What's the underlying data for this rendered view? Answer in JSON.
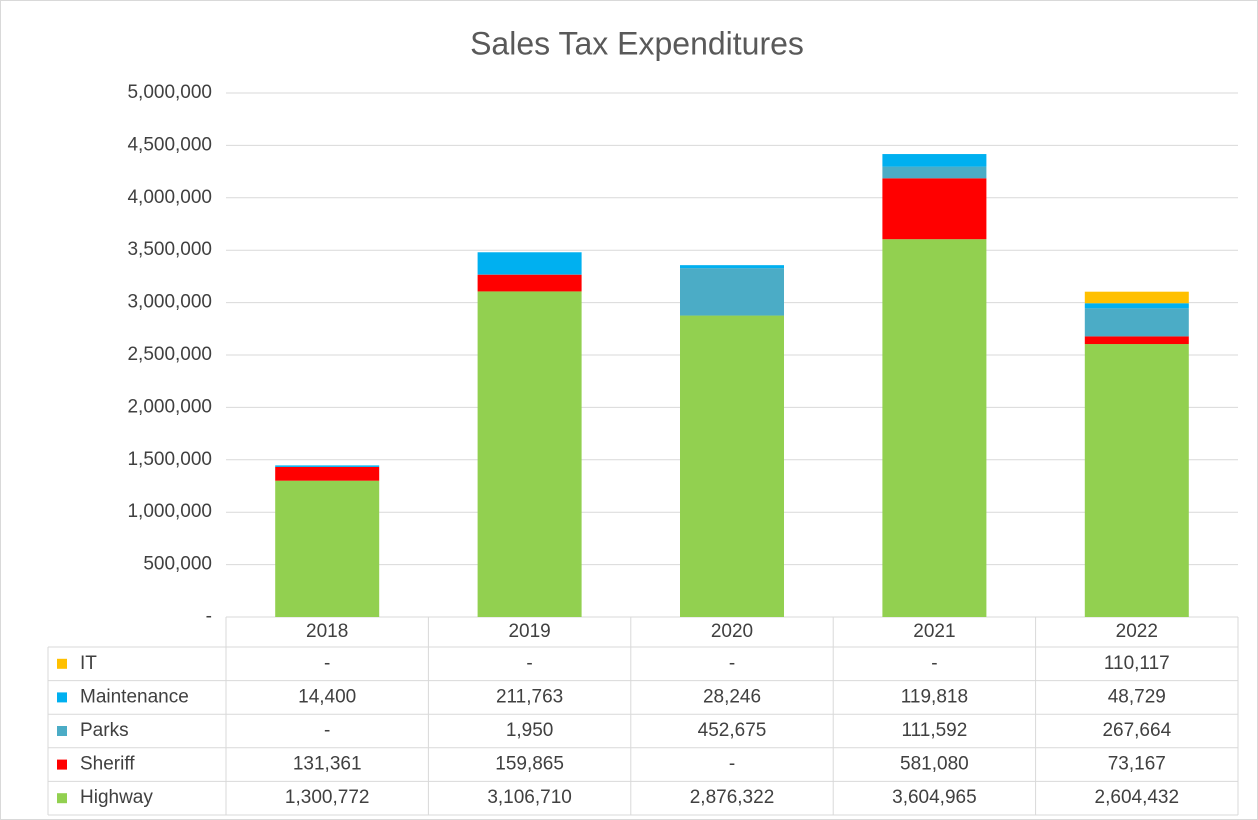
{
  "chart_data": {
    "type": "stacked_bar",
    "title": "Sales Tax Expenditures",
    "categories": [
      "2018",
      "2019",
      "2020",
      "2021",
      "2022"
    ],
    "series": [
      {
        "name": "IT",
        "color": "#ffc000",
        "values": [
          0,
          0,
          0,
          0,
          110117
        ],
        "value_labels": [
          "-",
          "-",
          "-",
          "-",
          "110,117"
        ]
      },
      {
        "name": "Maintenance",
        "color": "#00b0f0",
        "values": [
          14400,
          211763,
          28246,
          119818,
          48729
        ],
        "value_labels": [
          "14,400",
          "211,763",
          "28,246",
          "119,818",
          "48,729"
        ]
      },
      {
        "name": "Parks",
        "color": "#4bacc6",
        "values": [
          0,
          1950,
          452675,
          111592,
          267664
        ],
        "value_labels": [
          "-",
          "1,950",
          "452,675",
          "111,592",
          "267,664"
        ]
      },
      {
        "name": "Sheriff",
        "color": "#ff0000",
        "values": [
          131361,
          159865,
          0,
          581080,
          73167
        ],
        "value_labels": [
          "131,361",
          "159,865",
          "-",
          "581,080",
          "73,167"
        ]
      },
      {
        "name": "Highway",
        "color": "#92d050",
        "values": [
          1300772,
          3106710,
          2876322,
          3604965,
          2604432
        ],
        "value_labels": [
          "1,300,772",
          "3,106,710",
          "2,876,322",
          "3,604,965",
          "2,604,432"
        ]
      }
    ],
    "ylim": [
      0,
      5000000
    ],
    "yticks": [
      {
        "value": 0,
        "label": "-"
      },
      {
        "value": 500000,
        "label": "500,000"
      },
      {
        "value": 1000000,
        "label": "1,000,000"
      },
      {
        "value": 1500000,
        "label": "1,500,000"
      },
      {
        "value": 2000000,
        "label": "2,000,000"
      },
      {
        "value": 2500000,
        "label": "2,500,000"
      },
      {
        "value": 3000000,
        "label": "3,000,000"
      },
      {
        "value": 3500000,
        "label": "3,500,000"
      },
      {
        "value": 4000000,
        "label": "4,000,000"
      },
      {
        "value": 4500000,
        "label": "4,500,000"
      },
      {
        "value": 5000000,
        "label": "5,000,000"
      }
    ],
    "grid": true,
    "data_table": true
  }
}
